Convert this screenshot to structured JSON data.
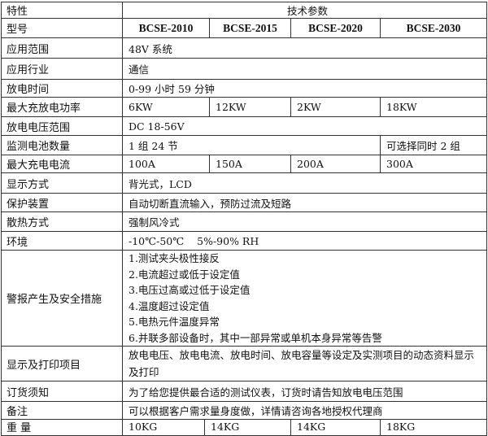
{
  "header": {
    "label": "特性",
    "value": "技术参数"
  },
  "model": {
    "label": "型号",
    "values": [
      "BCSE-2010",
      "BCSE-2015",
      "BCSE-2020",
      "BCSE-2030"
    ]
  },
  "application_range": {
    "label": "应用范围",
    "value": "48V 系统"
  },
  "industry": {
    "label": "应用行业",
    "value": "通信"
  },
  "discharge_time": {
    "label": "放电时间",
    "value": "0-99 小时 59 分钟"
  },
  "max_power": {
    "label": "最大充放电功率",
    "values": [
      "6KW",
      "12KW",
      "2KW",
      "18KW"
    ]
  },
  "voltage_range": {
    "label": "放电电压范围",
    "value": "DC 18-56V"
  },
  "battery_count": {
    "label": "监测电池数量",
    "value": "1 组 24 节",
    "value_2030": "可选择同时 2 组"
  },
  "max_current": {
    "label": "最大充电电流",
    "values": [
      "100A",
      "150A",
      "200A",
      "300A"
    ]
  },
  "display_mode": {
    "label": "显示方式",
    "value": "背光式，LCD"
  },
  "protection": {
    "label": "保护装置",
    "value": "自动切断直流输入，预防过流及短路"
  },
  "cooling": {
    "label": "散热方式",
    "value": "强制风冷式"
  },
  "environment": {
    "label": "环境",
    "value": "-10℃-50℃    5%-90% RH"
  },
  "alarm": {
    "label": "警报产生及安全措施",
    "items": [
      "1.测试夹头极性接反",
      "2.电流超过或低于设定值",
      "3.电压过高或过低于设定值",
      "4.温度超过设定值",
      "5.电热元件温度异常",
      "6.并联多部设备时，其中一部异常或单机本身异常等告警"
    ]
  },
  "display_print": {
    "label": "显示及打印项目",
    "value": "放电电压、放电电流、放电时间、放电容量等设定及实测项目的动态资料显示及打印"
  },
  "ordering": {
    "label": "订货须知",
    "value": "为了给您提供最合适的测试仪表，订货时请告知放电电压范围"
  },
  "remarks": {
    "label": "备注",
    "value": "可以根据客户需求量身度做，详情请咨询各地授权代理商"
  },
  "weight": {
    "label": "重 量",
    "values": [
      "10KG",
      "14KG",
      "14KG",
      "18KG"
    ]
  }
}
